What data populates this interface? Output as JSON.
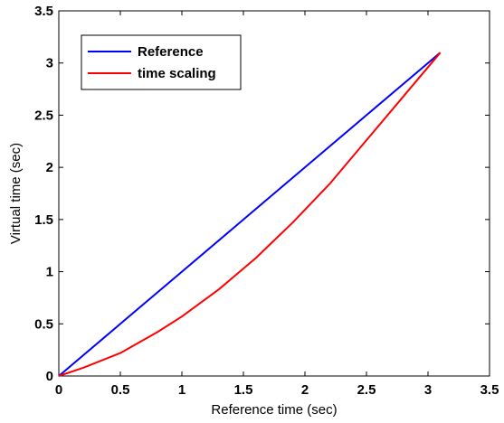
{
  "chart_data": {
    "type": "line",
    "title": "",
    "xlabel": "Reference time (sec)",
    "ylabel": "Virtual time (sec)",
    "xlim": [
      0,
      3.5
    ],
    "ylim": [
      0,
      3.5
    ],
    "xticks": [
      "0",
      "0.5",
      "1",
      "1.5",
      "2",
      "2.5",
      "3",
      "3.5"
    ],
    "yticks": [
      "0",
      "0.5",
      "1",
      "1.5",
      "2",
      "2.5",
      "3",
      "3.5"
    ],
    "grid": false,
    "legend_position": "top-left",
    "series": [
      {
        "name": "Reference",
        "color": "#0000ff",
        "x": [
          0,
          0.5,
          1.0,
          1.5,
          2.0,
          2.5,
          3.0,
          3.1
        ],
        "y": [
          0,
          0.5,
          1.0,
          1.5,
          2.0,
          2.5,
          3.0,
          3.1
        ]
      },
      {
        "name": "time scaling",
        "color": "#ff0000",
        "x": [
          0,
          0.2,
          0.5,
          0.8,
          1.0,
          1.3,
          1.6,
          1.9,
          2.2,
          2.5,
          2.8,
          3.1
        ],
        "y": [
          0,
          0.08,
          0.22,
          0.42,
          0.57,
          0.83,
          1.13,
          1.47,
          1.84,
          2.26,
          2.68,
          3.1
        ]
      }
    ]
  }
}
